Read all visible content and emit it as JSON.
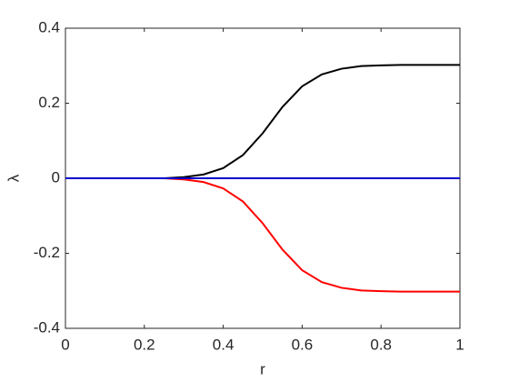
{
  "chart_data": {
    "type": "line",
    "x_label": "r",
    "y_label": "λ",
    "x": [
      0,
      0.05,
      0.1,
      0.15,
      0.2,
      0.25,
      0.3,
      0.35,
      0.4,
      0.45,
      0.5,
      0.55,
      0.6,
      0.65,
      0.7,
      0.75,
      0.8,
      0.85,
      0.9,
      0.95,
      1
    ],
    "series": [
      {
        "color": "#000000",
        "values": [
          0,
          0,
          0,
          0,
          0,
          0,
          0.003,
          0.01,
          0.027,
          0.062,
          0.12,
          0.19,
          0.245,
          0.277,
          0.292,
          0.299,
          0.301,
          0.302,
          0.302,
          0.302,
          0.302
        ]
      },
      {
        "color": "#ff0000",
        "values": [
          0,
          0,
          0,
          0,
          0,
          0,
          -0.003,
          -0.01,
          -0.027,
          -0.062,
          -0.12,
          -0.19,
          -0.245,
          -0.277,
          -0.292,
          -0.299,
          -0.301,
          -0.302,
          -0.302,
          -0.302,
          -0.302
        ]
      },
      {
        "color": "#0000cc",
        "values": [
          0,
          0,
          0,
          0,
          0,
          0,
          0,
          0,
          0,
          0,
          0,
          0,
          0,
          0,
          0,
          0,
          0,
          0,
          0,
          0,
          0
        ]
      }
    ],
    "xlim": [
      0,
      1
    ],
    "xticks": [
      0,
      0.2,
      0.4,
      0.6,
      0.8,
      1
    ],
    "ylim": [
      -0.4,
      0.4
    ],
    "yticks": [
      -0.4,
      -0.2,
      0,
      0.2,
      0.4
    ],
    "grid": false
  }
}
